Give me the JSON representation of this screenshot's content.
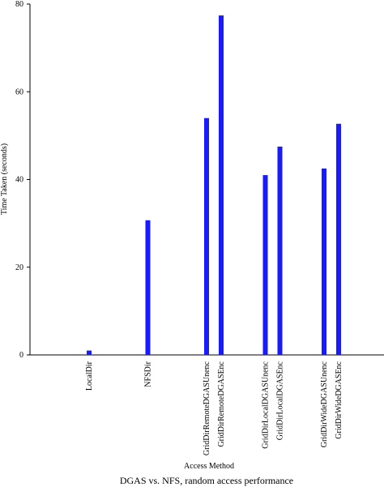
{
  "chart_data": {
    "type": "bar",
    "title": "DGAS vs. NFS, random access performance",
    "x_label": "Access Method",
    "y_label": "Time Taken (seconds)",
    "categories": [
      "LocalDir",
      "NFSDir",
      "GridDirRemoteDGASUnenc",
      "GridDirRemoteDGASEnc",
      "GridDirLocalDGASUnenc",
      "GridDirLocalDGASEnc",
      "GridDirWideDGASUnenc",
      "GridDirWideDGASEnc"
    ],
    "values": [
      1,
      30.7,
      54,
      77.4,
      41,
      47.5,
      42.5,
      52.7
    ],
    "color": "#1a1aff",
    "ylim": [
      0,
      80
    ],
    "yticks": [
      0,
      20,
      40,
      60,
      80
    ],
    "grid": false
  }
}
